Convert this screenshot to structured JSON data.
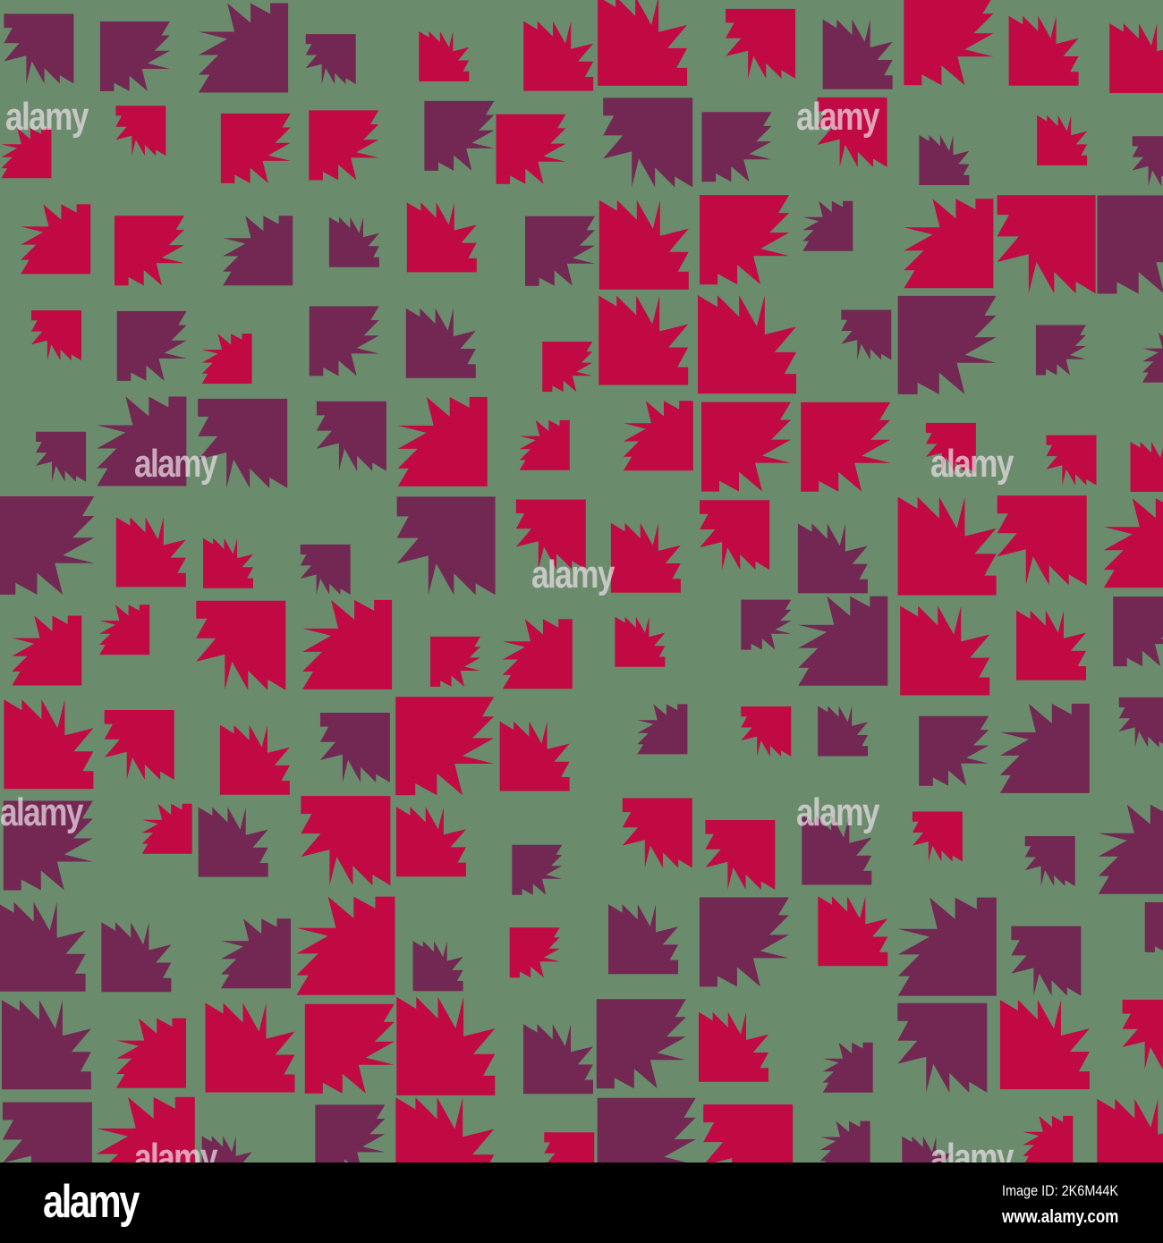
{
  "colors": {
    "background": "#6a8c6c",
    "crimson": "#c10a43",
    "purple": "#722853"
  },
  "watermark": "alamy",
  "footer": {
    "logo": "alamy",
    "image_id": "Image ID: 2K6M44K",
    "website": "www.alamy.com"
  }
}
